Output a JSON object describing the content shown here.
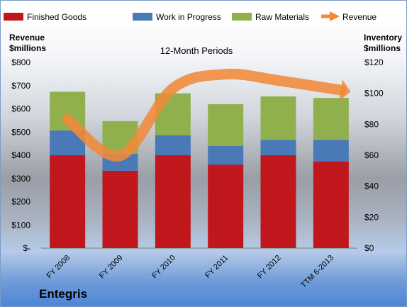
{
  "company_name": "Entegris",
  "colors": {
    "finished_goods": "#c0171c",
    "work_in_progress": "#4a79b8",
    "raw_materials": "#8fb04c",
    "revenue": "#f08a3a"
  },
  "chart_data": {
    "type": "bar",
    "stacked": true,
    "title": "12-Month Periods",
    "left_axis_label": [
      "Revenue",
      "$millions"
    ],
    "right_axis_label": [
      "Inventory",
      "$millions"
    ],
    "categories": [
      "FY 2008",
      "FY 2009",
      "FY 2010",
      "FY 2011",
      "FY 2012",
      "TTM 6-2013"
    ],
    "left_axis": {
      "min": 0,
      "max": 800,
      "ticks": [
        "$-",
        "$100",
        "$200",
        "$300",
        "$400",
        "$500",
        "$600",
        "$700",
        "$800"
      ]
    },
    "right_axis": {
      "min": 0,
      "max": 120,
      "ticks": [
        "$0",
        "$20",
        "$40",
        "$60",
        "$80",
        "$100",
        "$120"
      ]
    },
    "series": [
      {
        "name": "Finished Goods",
        "axis": "right",
        "kind": "bar",
        "values": [
          60,
          50,
          60,
          54,
          60,
          56
        ]
      },
      {
        "name": "Work in Progress",
        "axis": "right",
        "kind": "bar",
        "values": [
          16,
          11,
          13,
          12,
          10,
          14
        ]
      },
      {
        "name": "Raw Materials",
        "axis": "right",
        "kind": "bar",
        "values": [
          25,
          21,
          27,
          27,
          28,
          27
        ]
      },
      {
        "name": "Revenue",
        "axis": "left",
        "kind": "line",
        "values": [
          555,
          398,
          688,
          749,
          722,
          687
        ]
      }
    ],
    "legend_position": "top",
    "grid": false
  }
}
